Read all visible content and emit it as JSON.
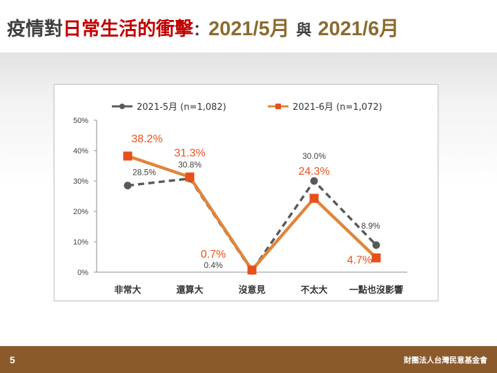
{
  "slide": {
    "title_part1": "疫情對",
    "title_part2": "日常生活的衝擊",
    "title_sep": "：",
    "title_may": "2021/5月",
    "title_and": "與",
    "title_june": "2021/6月",
    "page_number": "5",
    "organization": "財團法人台灣民意基金會"
  },
  "colors": {
    "series_may": "#595959",
    "series_june": "#e0853a",
    "marker_june": "#e8501b",
    "label_may": "#404040",
    "label_june": "#e8501b"
  },
  "chart_data": {
    "type": "line",
    "categories": [
      "非常大",
      "還算大",
      "沒意見",
      "不太大",
      "一點也沒影響"
    ],
    "ylim": [
      0,
      50
    ],
    "yticks": [
      "0%",
      "10%",
      "20%",
      "30%",
      "40%",
      "50%"
    ],
    "grid": false,
    "legend_position": "top",
    "series": [
      {
        "name": "2021-5月 (n=1,082)",
        "values": [
          28.5,
          30.8,
          0.4,
          30.0,
          8.9
        ],
        "labels": [
          "28.5%",
          "30.8%",
          "0.4%",
          "30.0%",
          "8.9%"
        ]
      },
      {
        "name": "2021-6月 (n=1,072)",
        "values": [
          38.2,
          31.3,
          0.7,
          24.3,
          4.7
        ],
        "labels": [
          "38.2%",
          "31.3%",
          "0.7%",
          "24.3%",
          "4.7%"
        ]
      }
    ]
  }
}
